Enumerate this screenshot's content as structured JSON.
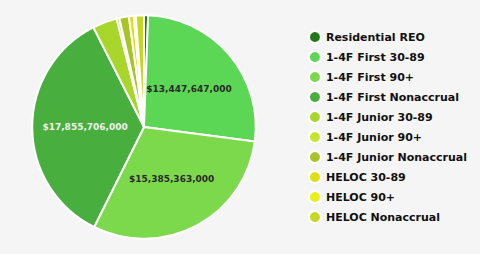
{
  "chart_data": {
    "type": "pie",
    "categories": [
      "Residential REO",
      "1-4F First 30-89",
      "1-4F First 90+",
      "1-4F First Nonaccrual",
      "1-4F Junior 30-89",
      "1-4F Junior 90+",
      "1-4F Junior Nonaccrual",
      "HELOC 30-89",
      "HELOC 90+",
      "HELOC Nonaccrual"
    ],
    "values": [
      300000000,
      13447647000,
      15385363000,
      17855706000,
      1800000000,
      200000000,
      700000000,
      350000000,
      150000000,
      600000000
    ],
    "colors": [
      "#217a1a",
      "#5cd655",
      "#7dd94c",
      "#48ae3d",
      "#a8d62a",
      "#c6e42e",
      "#aac428",
      "#dce010",
      "#e8f01a",
      "#c4d822"
    ],
    "data_labels": true,
    "value_labels": [
      null,
      "$13,447,647,000",
      "$15,385,363,000",
      "$17,855,706,000",
      null,
      null,
      null,
      null,
      null,
      null
    ],
    "legend": "right"
  }
}
